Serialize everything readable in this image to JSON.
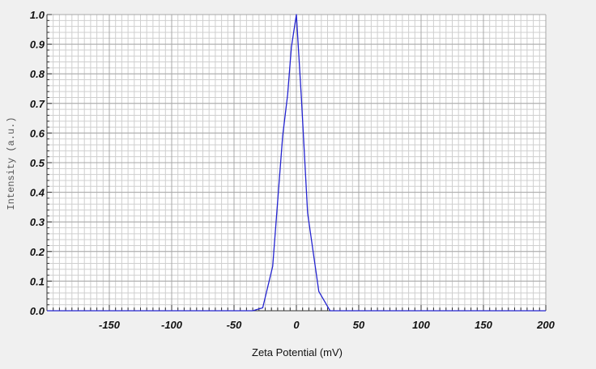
{
  "chart_data": {
    "type": "line",
    "title": "",
    "xlabel": "Zeta Potential (mV)",
    "ylabel": "Intensity (a.u.)",
    "xlim": [
      -200,
      200
    ],
    "ylim": [
      0,
      1.0
    ],
    "x_ticks": [
      -150,
      -100,
      -50,
      0,
      50,
      100,
      150,
      200
    ],
    "y_ticks": [
      0.0,
      0.1,
      0.2,
      0.3,
      0.4,
      0.5,
      0.6,
      0.7,
      0.8,
      0.9,
      1.0
    ],
    "x_tick_labels": [
      "-150",
      "-100",
      "-50",
      "0",
      "50",
      "100",
      "150",
      "200"
    ],
    "y_tick_labels": [
      "0.0",
      "0.1",
      "0.2",
      "0.3",
      "0.4",
      "0.5",
      "0.6",
      "0.7",
      "0.8",
      "0.9",
      "1.0"
    ],
    "grid": true,
    "line_color": "#2424d0",
    "series": [
      {
        "x": [
          -200,
          -35,
          -27,
          -19,
          -11,
          -7,
          -4,
          0,
          4,
          9,
          18,
          27,
          200
        ],
        "y": [
          0,
          0,
          0.01,
          0.15,
          0.59,
          0.73,
          0.89,
          1.0,
          0.72,
          0.33,
          0.065,
          0,
          0
        ]
      }
    ]
  }
}
